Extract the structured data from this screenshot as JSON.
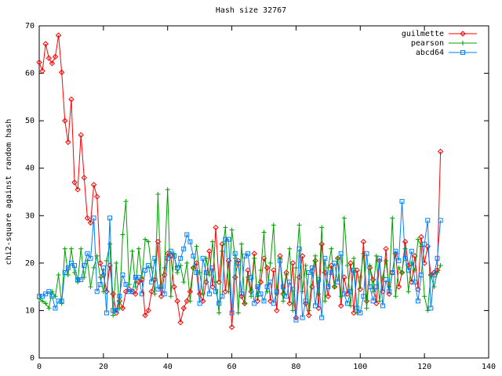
{
  "chart_data": {
    "type": "line",
    "title": "Hash size 32767",
    "ylabel": "chi2-square against random hash",
    "x": [
      0,
      1,
      2,
      3,
      4,
      5,
      6,
      7,
      8,
      9,
      10,
      11,
      12,
      13,
      14,
      15,
      16,
      17,
      18,
      19,
      20,
      21,
      22,
      23,
      24,
      25,
      26,
      27,
      28,
      29,
      30,
      31,
      32,
      33,
      34,
      35,
      36,
      37,
      38,
      39,
      40,
      41,
      42,
      43,
      44,
      45,
      46,
      47,
      48,
      49,
      50,
      51,
      52,
      53,
      54,
      55,
      56,
      57,
      58,
      59,
      60,
      61,
      62,
      63,
      64,
      65,
      66,
      67,
      68,
      69,
      70,
      71,
      72,
      73,
      74,
      75,
      76,
      77,
      78,
      79,
      80,
      81,
      82,
      83,
      84,
      85,
      86,
      87,
      88,
      89,
      90,
      91,
      92,
      93,
      94,
      95,
      96,
      97,
      98,
      99,
      100,
      101,
      102,
      103,
      104,
      105,
      106,
      107,
      108,
      109,
      110,
      111,
      112,
      113,
      114,
      115,
      116,
      117,
      118,
      119,
      120,
      121,
      122,
      123,
      124,
      125
    ],
    "series": [
      {
        "name": "guilmette",
        "color": "#ff0000",
        "marker": "diamond",
        "values": [
          62.3,
          60.5,
          66.2,
          63.2,
          62.1,
          63.5,
          68.0,
          60.2,
          50.0,
          45.5,
          54.5,
          37.0,
          35.5,
          47.0,
          38.0,
          29.5,
          28.5,
          36.5,
          34.0,
          20.0,
          17.5,
          14.0,
          19.5,
          13.5,
          9.5,
          12.0,
          10.5,
          14.0,
          14.5,
          14.0,
          13.5,
          16.0,
          16.5,
          9.0,
          10.0,
          14.0,
          16.5,
          24.5,
          13.0,
          17.5,
          22.0,
          21.5,
          15.0,
          12.0,
          7.5,
          10.5,
          12.0,
          14.0,
          19.0,
          20.0,
          13.5,
          12.0,
          16.0,
          22.5,
          15.0,
          27.5,
          16.0,
          24.0,
          14.0,
          20.5,
          6.5,
          17.0,
          20.5,
          13.0,
          11.5,
          18.5,
          14.0,
          22.0,
          12.0,
          16.0,
          21.0,
          19.0,
          12.0,
          18.5,
          10.0,
          21.5,
          13.5,
          18.0,
          11.5,
          20.0,
          8.5,
          17.0,
          21.5,
          11.5,
          9.0,
          15.0,
          20.5,
          10.5,
          24.0,
          18.0,
          13.0,
          19.5,
          15.0,
          21.0,
          11.0,
          17.0,
          13.5,
          20.0,
          9.5,
          18.5,
          14.5,
          24.5,
          12.0,
          19.0,
          16.5,
          11.5,
          20.5,
          14.0,
          23.0,
          13.5,
          18.0,
          22.0,
          15.0,
          18.0,
          24.5,
          19.5,
          16.0,
          21.5,
          14.5,
          25.5,
          20.0,
          23.5,
          17.5,
          18.0,
          18.5,
          43.5
        ]
      },
      {
        "name": "pearson",
        "color": "#00a000",
        "marker": "plus",
        "values": [
          12.5,
          12.0,
          11.5,
          10.5,
          14.0,
          13.0,
          17.5,
          11.5,
          23.0,
          17.5,
          23.0,
          18.0,
          16.0,
          23.0,
          17.0,
          20.5,
          15.0,
          19.0,
          21.5,
          17.0,
          14.0,
          20.5,
          24.0,
          9.0,
          20.0,
          10.5,
          26.0,
          33.0,
          15.5,
          22.5,
          15.0,
          23.0,
          17.0,
          25.0,
          24.5,
          19.0,
          13.5,
          34.5,
          15.0,
          19.0,
          35.5,
          13.0,
          22.0,
          18.0,
          19.5,
          16.0,
          20.0,
          12.0,
          19.0,
          23.5,
          18.0,
          13.5,
          21.0,
          17.5,
          24.5,
          16.0,
          9.5,
          22.5,
          27.5,
          14.0,
          27.0,
          21.0,
          9.5,
          24.0,
          11.5,
          17.0,
          13.0,
          21.0,
          13.0,
          18.5,
          26.5,
          14.0,
          20.0,
          28.0,
          13.5,
          21.0,
          12.0,
          17.5,
          23.0,
          10.0,
          19.0,
          28.0,
          14.0,
          19.5,
          10.0,
          18.0,
          21.5,
          13.5,
          27.5,
          12.0,
          19.0,
          23.0,
          15.0,
          21.0,
          13.0,
          29.5,
          19.5,
          11.0,
          21.0,
          9.5,
          17.0,
          22.0,
          10.5,
          19.5,
          14.0,
          21.5,
          12.0,
          17.0,
          20.5,
          15.0,
          29.5,
          13.0,
          19.0,
          18.0,
          23.0,
          14.0,
          20.0,
          18.5,
          25.0,
          23.5,
          13.0,
          10.0,
          17.5,
          15.0,
          18.0,
          19.5
        ]
      },
      {
        "name": "abcd64",
        "color": "#0080ff",
        "marker": "square",
        "values": [
          13.0,
          13.0,
          13.5,
          14.0,
          13.0,
          10.5,
          12.0,
          12.0,
          18.0,
          19.0,
          20.0,
          19.5,
          16.5,
          16.5,
          19.5,
          22.0,
          21.0,
          29.5,
          14.0,
          15.5,
          19.0,
          9.5,
          29.5,
          10.0,
          10.0,
          13.0,
          17.5,
          15.5,
          14.0,
          14.0,
          17.0,
          17.0,
          13.5,
          18.5,
          19.5,
          16.0,
          21.0,
          14.5,
          15.0,
          13.5,
          21.0,
          22.5,
          21.5,
          19.0,
          21.0,
          23.0,
          26.0,
          24.5,
          21.5,
          18.0,
          11.5,
          21.0,
          18.0,
          13.5,
          19.0,
          14.0,
          11.5,
          13.0,
          25.0,
          25.0,
          9.5,
          22.0,
          20.0,
          13.5,
          21.5,
          22.0,
          17.0,
          11.5,
          15.0,
          13.5,
          12.0,
          15.0,
          16.0,
          11.5,
          14.0,
          20.5,
          15.0,
          13.0,
          16.0,
          14.5,
          8.0,
          23.0,
          8.5,
          12.0,
          18.0,
          19.0,
          11.0,
          16.5,
          8.5,
          21.0,
          15.0,
          18.0,
          20.0,
          16.0,
          22.0,
          13.5,
          11.5,
          14.0,
          18.5,
          10.5,
          9.5,
          13.0,
          22.0,
          15.0,
          12.0,
          15.0,
          21.0,
          11.0,
          16.5,
          14.0,
          18.0,
          22.5,
          20.5,
          33.0,
          21.0,
          18.5,
          22.5,
          16.0,
          12.0,
          17.5,
          24.0,
          29.0,
          10.5,
          17.5,
          21.0,
          29.0
        ]
      }
    ],
    "xlim": [
      0,
      140
    ],
    "xticks": [
      0,
      20,
      40,
      60,
      80,
      100,
      120,
      140
    ],
    "ylim": [
      0,
      70
    ],
    "yticks": [
      0,
      10,
      20,
      30,
      40,
      50,
      60,
      70
    ],
    "legend": "top right"
  }
}
